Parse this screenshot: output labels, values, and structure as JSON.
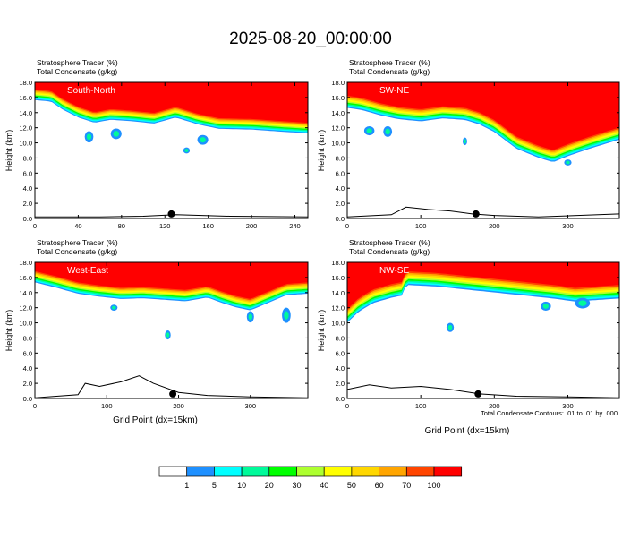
{
  "title": "2025-08-20_00:00:00",
  "footer_note": "Total Condensate Contours: .01 to .01 by .000",
  "colorbar": {
    "colors": [
      "#ffffff",
      "#1e90ff",
      "#00ffff",
      "#00fa9a",
      "#00ff00",
      "#adff2f",
      "#ffff00",
      "#ffd700",
      "#ffa500",
      "#ff4500",
      "#ff0000"
    ],
    "labels": [
      "1",
      "5",
      "10",
      "20",
      "30",
      "40",
      "50",
      "60",
      "70",
      "100"
    ]
  },
  "chart_data": [
    {
      "type": "heatmap",
      "variable_lines": [
        "Stratosphere Tracer   (%)",
        "Total Condensate   (g/kg)"
      ],
      "panel_label": "South-North",
      "ylabel": "Height (km)",
      "xlabel": "",
      "xlim": [
        0,
        252
      ],
      "ylim": [
        0,
        18
      ],
      "x_ticks": [
        "0",
        "40",
        "80",
        "120",
        "160",
        "200",
        "240"
      ],
      "y_ticks": [
        "0.0",
        "2.0",
        "4.0",
        "6.0",
        "8.0",
        "10.0",
        "12.0",
        "14.0",
        "16.0",
        "18.0"
      ],
      "tropopause_profile": [
        [
          0,
          15.8
        ],
        [
          15,
          15.6
        ],
        [
          25,
          14.6
        ],
        [
          40,
          13.5
        ],
        [
          55,
          12.8
        ],
        [
          70,
          13.2
        ],
        [
          90,
          13.0
        ],
        [
          110,
          12.7
        ],
        [
          130,
          13.5
        ],
        [
          150,
          12.6
        ],
        [
          170,
          12.0
        ],
        [
          200,
          11.9
        ],
        [
          230,
          11.6
        ],
        [
          252,
          11.4
        ]
      ],
      "blue_thickness_km": 1.4,
      "blue_blobs": [
        [
          50,
          10.8,
          8,
          1.5
        ],
        [
          75,
          11.2,
          10,
          1.4
        ],
        [
          140,
          9.0,
          6,
          0.8
        ],
        [
          155,
          10.4,
          10,
          1.3
        ]
      ],
      "terrain": [
        [
          0,
          0.2
        ],
        [
          60,
          0.2
        ],
        [
          100,
          0.3
        ],
        [
          130,
          0.5
        ],
        [
          180,
          0.3
        ],
        [
          252,
          0.2
        ]
      ],
      "marker_x": 126
    },
    {
      "type": "heatmap",
      "variable_lines": [
        "Stratosphere Tracer   (%)",
        "Total Condensate   (g/kg)"
      ],
      "panel_label": "SW-NE",
      "ylabel": "Height (km)",
      "xlabel": "",
      "xlim": [
        0,
        370
      ],
      "ylim": [
        0,
        18
      ],
      "x_ticks": [
        "0",
        "100",
        "200",
        "300"
      ],
      "y_ticks": [
        "0.0",
        "2.0",
        "4.0",
        "6.0",
        "8.0",
        "10.0",
        "12.0",
        "14.0",
        "16.0",
        "18.0"
      ],
      "tropopause_profile": [
        [
          0,
          14.8
        ],
        [
          20,
          14.5
        ],
        [
          45,
          13.8
        ],
        [
          70,
          13.3
        ],
        [
          100,
          13.0
        ],
        [
          130,
          13.4
        ],
        [
          160,
          13.2
        ],
        [
          180,
          12.6
        ],
        [
          200,
          11.6
        ],
        [
          230,
          9.4
        ],
        [
          260,
          8.2
        ],
        [
          280,
          7.6
        ],
        [
          300,
          8.4
        ],
        [
          330,
          9.4
        ],
        [
          370,
          10.6
        ]
      ],
      "blue_thickness_km": 1.6,
      "blue_blobs": [
        [
          30,
          11.6,
          14,
          1.2
        ],
        [
          55,
          11.5,
          12,
          1.4
        ],
        [
          160,
          10.2,
          6,
          1.0
        ],
        [
          300,
          7.4,
          10,
          0.8
        ]
      ],
      "terrain": [
        [
          0,
          0.2
        ],
        [
          60,
          0.5
        ],
        [
          80,
          1.5
        ],
        [
          110,
          1.2
        ],
        [
          140,
          1.0
        ],
        [
          170,
          0.6
        ],
        [
          200,
          0.4
        ],
        [
          260,
          0.2
        ],
        [
          370,
          0.6
        ]
      ],
      "marker_x": 175
    },
    {
      "type": "heatmap",
      "variable_lines": [
        "Stratosphere Tracer   (%)",
        "Total Condensate   (g/kg)"
      ],
      "panel_label": "West-East",
      "ylabel": "Height (km)",
      "xlabel": "Grid Point (dx=15km)",
      "xlim": [
        0,
        380
      ],
      "ylim": [
        0,
        18
      ],
      "x_ticks": [
        "0",
        "100",
        "200",
        "300"
      ],
      "y_ticks": [
        "0.0",
        "2.0",
        "4.0",
        "6.0",
        "8.0",
        "10.0",
        "12.0",
        "14.0",
        "16.0",
        "18.0"
      ],
      "tropopause_profile": [
        [
          0,
          15.5
        ],
        [
          30,
          14.8
        ],
        [
          60,
          14.0
        ],
        [
          90,
          13.6
        ],
        [
          120,
          13.3
        ],
        [
          150,
          13.4
        ],
        [
          180,
          13.2
        ],
        [
          210,
          13.0
        ],
        [
          240,
          13.5
        ],
        [
          260,
          12.8
        ],
        [
          280,
          12.2
        ],
        [
          300,
          11.8
        ],
        [
          320,
          12.6
        ],
        [
          350,
          13.8
        ],
        [
          380,
          14.0
        ]
      ],
      "blue_thickness_km": 1.5,
      "blue_blobs": [
        [
          110,
          12.0,
          10,
          0.8
        ],
        [
          185,
          8.4,
          8,
          1.2
        ],
        [
          300,
          10.8,
          10,
          1.5
        ],
        [
          350,
          11.0,
          12,
          2.0
        ]
      ],
      "terrain": [
        [
          0,
          0.1
        ],
        [
          60,
          0.5
        ],
        [
          70,
          2.0
        ],
        [
          90,
          1.6
        ],
        [
          120,
          2.2
        ],
        [
          145,
          3.0
        ],
        [
          165,
          2.0
        ],
        [
          200,
          0.8
        ],
        [
          240,
          0.4
        ],
        [
          300,
          0.2
        ],
        [
          380,
          0.1
        ]
      ],
      "marker_x": 192
    },
    {
      "type": "heatmap",
      "variable_lines": [
        "Stratosphere Tracer   (%)",
        "Total Condensate   (g/kg)"
      ],
      "panel_label": "NW-SE",
      "ylabel": "Height (km)",
      "xlabel": "Grid Point (dx=15km)",
      "xlim": [
        0,
        370
      ],
      "ylim": [
        0,
        18
      ],
      "x_ticks": [
        "0",
        "100",
        "200",
        "300"
      ],
      "y_ticks": [
        "0.0",
        "2.0",
        "4.0",
        "6.0",
        "8.0",
        "10.0",
        "12.0",
        "14.0",
        "16.0",
        "18.0"
      ],
      "tropopause_profile": [
        [
          0,
          10.2
        ],
        [
          15,
          11.6
        ],
        [
          35,
          12.8
        ],
        [
          60,
          13.5
        ],
        [
          75,
          13.8
        ],
        [
          80,
          15.2
        ],
        [
          120,
          15.0
        ],
        [
          160,
          14.6
        ],
        [
          200,
          14.2
        ],
        [
          240,
          13.8
        ],
        [
          280,
          13.4
        ],
        [
          310,
          13.0
        ],
        [
          340,
          13.2
        ],
        [
          370,
          13.4
        ]
      ],
      "blue_thickness_km": 1.8,
      "blue_blobs": [
        [
          140,
          9.4,
          10,
          1.2
        ],
        [
          270,
          12.2,
          14,
          1.2
        ],
        [
          320,
          12.6,
          20,
          1.4
        ]
      ],
      "terrain": [
        [
          0,
          1.2
        ],
        [
          30,
          1.8
        ],
        [
          60,
          1.4
        ],
        [
          100,
          1.6
        ],
        [
          140,
          1.2
        ],
        [
          180,
          0.6
        ],
        [
          230,
          0.3
        ],
        [
          300,
          0.2
        ],
        [
          370,
          0.1
        ]
      ],
      "marker_x": 178
    }
  ]
}
